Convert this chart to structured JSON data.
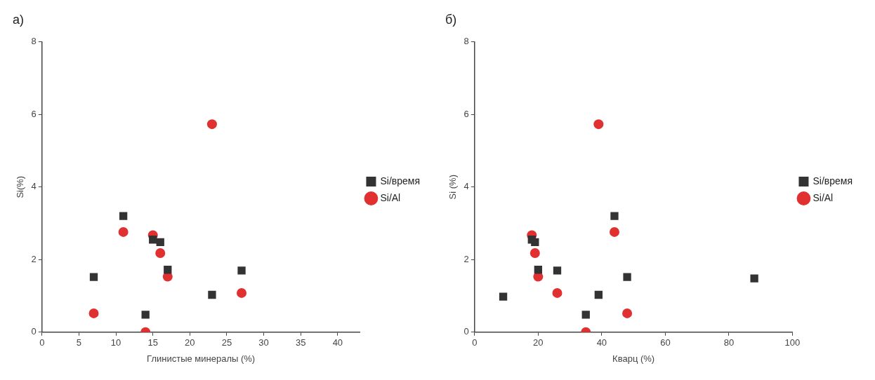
{
  "chart_data": [
    {
      "type": "scatter",
      "title": "а)",
      "xlabel": "Глинистые минералы (%)",
      "ylabel": "Si(%)",
      "xlim": [
        0,
        43
      ],
      "xticks": [
        0,
        5,
        10,
        15,
        20,
        25,
        30,
        35,
        40
      ],
      "ylim": [
        0,
        8
      ],
      "yticks": [
        0,
        2,
        4,
        6,
        8
      ],
      "grid": false,
      "legend": "right",
      "series": [
        {
          "name": "Si/время",
          "color": "#333333",
          "marker": "square",
          "x": [
            7,
            11,
            14,
            15,
            16,
            17,
            23,
            27
          ],
          "values": [
            1.52,
            3.2,
            0.48,
            2.55,
            2.48,
            1.72,
            1.03,
            1.7
          ]
        },
        {
          "name": "Si/Al",
          "color": "#e03030",
          "marker": "circle",
          "x": [
            7,
            11,
            14,
            15,
            16,
            17,
            23,
            27
          ],
          "values": [
            0.52,
            2.76,
            0,
            2.67,
            2.18,
            1.53,
            5.73,
            1.08
          ]
        }
      ]
    },
    {
      "type": "scatter",
      "title": "б)",
      "xlabel": "Кварц (%)",
      "ylabel": "Si (%)",
      "xlim": [
        0,
        100
      ],
      "xticks": [
        0,
        20,
        40,
        60,
        80,
        100
      ],
      "ylim": [
        0,
        8
      ],
      "yticks": [
        0,
        2,
        4,
        6,
        8
      ],
      "grid": false,
      "legend": "right",
      "series": [
        {
          "name": "Si/время",
          "color": "#333333",
          "marker": "square",
          "x": [
            9,
            18,
            19,
            20,
            26,
            35,
            39,
            44,
            48,
            88
          ],
          "values": [
            0.98,
            2.55,
            2.48,
            1.72,
            1.7,
            0.48,
            1.03,
            3.2,
            1.52,
            1.48
          ]
        },
        {
          "name": "Si/Al",
          "color": "#e03030",
          "marker": "circle",
          "x": [
            18,
            19,
            20,
            26,
            35,
            39,
            44,
            48
          ],
          "values": [
            2.67,
            2.18,
            1.53,
            1.08,
            0,
            5.73,
            2.76,
            0.52
          ]
        }
      ]
    }
  ]
}
